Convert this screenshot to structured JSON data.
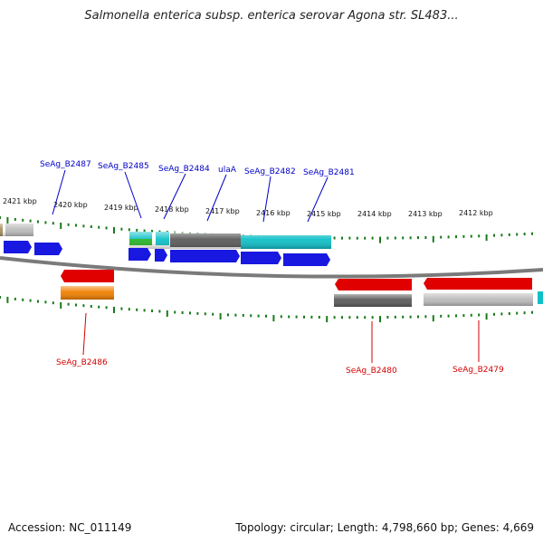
{
  "title": "Salmonella enterica subsp. enterica serovar Agona str. SL483...",
  "footer": {
    "accession": "Accession: NC_011149",
    "summary": "Topology: circular; Length: 4,798,660 bp; Genes: 4,669"
  },
  "colors": {
    "label_top": "#0000c8",
    "label_bottom": "#d40000",
    "tick": "#1a7a1a",
    "backbone": "#7a7a7a",
    "blue": "#1818e0",
    "red": "#e00000",
    "gray_dark": "#5a5a5a",
    "gray_light": "#bcbcbc",
    "cyan": "#10c0c8",
    "orange": "#f08000",
    "green": "#28b428",
    "tan": "#a89060"
  },
  "scale_labels": [
    "2421 kbp",
    "2420 kbp",
    "2419 kbp",
    "2418 kbp",
    "2417 kbp",
    "2416 kbp",
    "2415 kbp",
    "2414 kbp",
    "2413 kbp",
    "2412 kbp"
  ],
  "top_gene_labels": [
    "SeAg_B2487",
    "SeAg_B2485",
    "SeAg_B2484",
    "ulaA",
    "SeAg_B2482",
    "SeAg_B2481"
  ],
  "bottom_gene_labels": [
    "SeAg_B2486",
    "SeAg_B2480",
    "SeAg_B2479"
  ]
}
